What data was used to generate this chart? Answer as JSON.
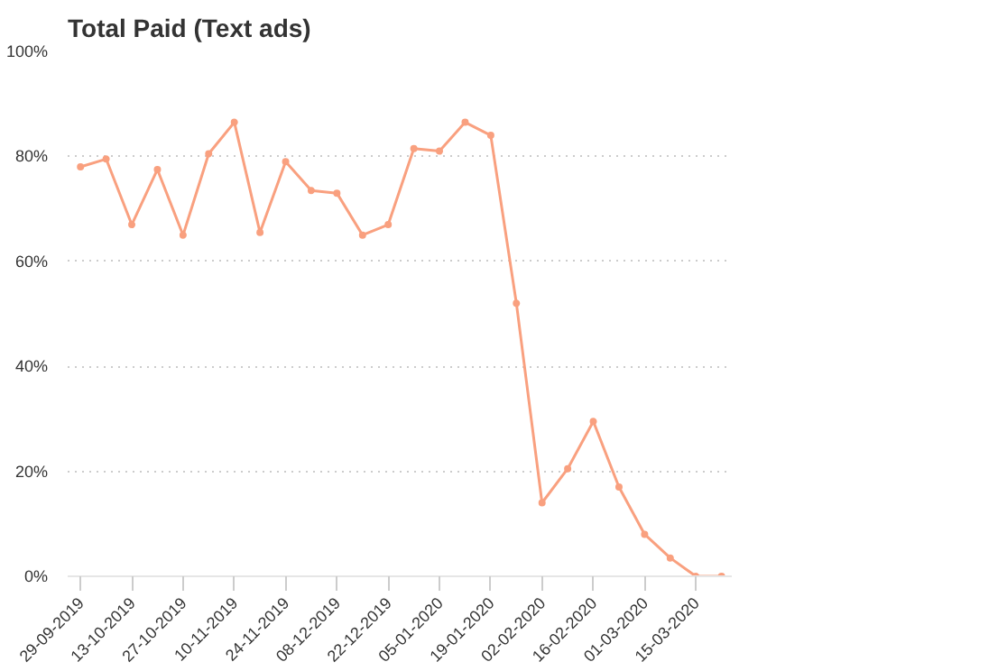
{
  "chart_data": {
    "type": "line",
    "title": "Total Paid (Text ads)",
    "categories": [
      "29-09-2019",
      null,
      "13-10-2019",
      null,
      "27-10-2019",
      null,
      "10-11-2019",
      null,
      "24-11-2019",
      null,
      "08-12-2019",
      null,
      "22-12-2019",
      null,
      "05-01-2020",
      null,
      "19-01-2020",
      null,
      "02-02-2020",
      null,
      "16-02-2020",
      null,
      "01-03-2020",
      null,
      "15-03-2020",
      null
    ],
    "series": [
      {
        "color": "#f9a07f",
        "values": [
          78,
          79.5,
          67,
          77.5,
          65,
          80.5,
          86.5,
          65.5,
          79,
          73.5,
          73,
          65,
          67,
          81.5,
          81,
          86.5,
          84,
          52,
          14,
          20.5,
          29.5,
          17,
          8,
          3.5,
          0,
          0
        ]
      }
    ],
    "ylim": [
      0,
      100
    ],
    "yticks": [
      {
        "value": 0,
        "label": "0%"
      },
      {
        "value": 20,
        "label": "20%"
      },
      {
        "value": 40,
        "label": "40%"
      },
      {
        "value": 60,
        "label": "60%"
      },
      {
        "value": 80,
        "label": "80%"
      },
      {
        "value": 100,
        "label": "100%"
      }
    ],
    "grid": "y",
    "marker": "circle",
    "line_style": "solid"
  }
}
